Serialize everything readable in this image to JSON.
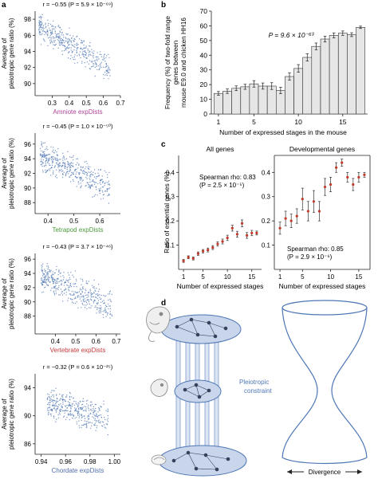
{
  "panel_labels": {
    "a": "a",
    "b": "b",
    "c": "c",
    "d": "d"
  },
  "colors": {
    "scatter_point": "#5b7fb8",
    "amniote": "#b0449b",
    "tetrapod": "#4c9a3c",
    "vertebrate": "#c43c3c",
    "chordate": "#4f6fa8",
    "bar_fill": "#e6e6e6",
    "error_point": "#c0392b",
    "embryo_blue": "#c9d5ea",
    "outline_blue": "#4e77b5",
    "constraint_text": "#4e77b5"
  },
  "chart_data": [
    {
      "id": "a1",
      "type": "scatter",
      "stat": "r = −0.55 (P = 5.9 × 10⁻⁶⁹)",
      "xlabel": "Amniote expDists",
      "ylabel_1": "Average of",
      "ylabel_2": "pleiotropic gene ratio (%)",
      "xlim": [
        0.2,
        0.7
      ],
      "ylim": [
        88.5,
        99
      ],
      "xticks": [
        "0.3",
        "0.4",
        "0.5",
        "0.6",
        "0.7"
      ],
      "xtick_values": [
        0.3,
        0.4,
        0.5,
        0.6,
        0.7
      ],
      "yticks": [
        "90",
        "92",
        "94",
        "96",
        "98"
      ],
      "ytick_values": [
        90,
        92,
        94,
        96,
        98
      ],
      "cloud": {
        "x_from": 0.22,
        "x_to": 0.64,
        "y_start": 97.2,
        "y_end": 91.8,
        "spread": 1.6,
        "n": 420,
        "seed": 11
      }
    },
    {
      "id": "a2",
      "type": "scatter",
      "stat": "r = −0.45 (P = 1.0 × 10⁻⁵⁰)",
      "xlabel": "Tetrapod expDists",
      "ylabel_1": "Average of",
      "ylabel_2": "pleiotropic gene ratio (%)",
      "xlim": [
        0.35,
        0.68
      ],
      "ylim": [
        86.5,
        97.5
      ],
      "xticks": [
        "0.4",
        "0.5",
        "0.6"
      ],
      "xtick_values": [
        0.4,
        0.5,
        0.6
      ],
      "yticks": [
        "88",
        "90",
        "92",
        "94",
        "96"
      ],
      "ytick_values": [
        88,
        90,
        92,
        94,
        96
      ],
      "cloud": {
        "x_from": 0.37,
        "x_to": 0.64,
        "y_start": 94.5,
        "y_end": 90.0,
        "spread": 1.9,
        "n": 440,
        "seed": 23
      }
    },
    {
      "id": "a3",
      "type": "scatter",
      "stat": "r = −0.43 (P = 3.7 × 10⁻⁴⁶)",
      "xlabel": "Vertebrate expDists",
      "ylabel_1": "Average of",
      "ylabel_2": "pleiotropic gene ratio (%)",
      "xlim": [
        0.3,
        0.72
      ],
      "ylim": [
        85.5,
        96.8
      ],
      "xticks": [
        "0.4",
        "0.5",
        "0.6",
        "0.7"
      ],
      "xtick_values": [
        0.4,
        0.5,
        0.6,
        0.7
      ],
      "yticks": [
        "88",
        "90",
        "92",
        "94",
        "96"
      ],
      "ytick_values": [
        88,
        90,
        92,
        94,
        96
      ],
      "cloud": {
        "x_from": 0.33,
        "x_to": 0.68,
        "y_start": 93.6,
        "y_end": 89.4,
        "spread": 2.0,
        "n": 430,
        "seed": 37
      }
    },
    {
      "id": "a4",
      "type": "scatter",
      "stat": "r = −0.32 (P = 0.6 × 10⁻²⁵)",
      "xlabel": "Chordate expDists",
      "ylabel_1": "Average of",
      "ylabel_2": "pleiotropic gene ratio (%)",
      "xlim": [
        0.935,
        1.005
      ],
      "ylim": [
        84.5,
        96
      ],
      "xticks": [
        "0.94",
        "0.96",
        "0.98",
        "1.00"
      ],
      "xtick_values": [
        0.94,
        0.96,
        0.98,
        1.0
      ],
      "yticks": [
        "86",
        "90",
        "94"
      ],
      "ytick_values": [
        86,
        90,
        94
      ],
      "cloud": {
        "x_from": 0.945,
        "x_to": 0.995,
        "y_start": 92.0,
        "y_end": 89.5,
        "spread": 2.1,
        "n": 380,
        "seed": 53
      }
    },
    {
      "id": "b",
      "type": "bar",
      "stat": "P = 9.6 × 10⁻⁶³",
      "xlabel": "Number of expressed stages in the mouse",
      "ylabel_1": "Frequency (%) of two-fold range",
      "ylabel_2": "genes between",
      "ylabel_3": "mouse E9.0 and chicken HH16",
      "categories": [
        1,
        2,
        3,
        4,
        5,
        6,
        7,
        8,
        9,
        10,
        11,
        12,
        13,
        14,
        15,
        16,
        17
      ],
      "values": [
        14,
        15.5,
        17.5,
        18.5,
        20.5,
        19,
        19,
        16,
        25.5,
        31,
        38.5,
        46,
        51,
        53.5,
        55,
        54,
        59
      ],
      "errors": [
        1.3,
        1.5,
        1.6,
        1.7,
        2.2,
        2.1,
        2.3,
        2.2,
        2.4,
        2.6,
        2.5,
        2.3,
        2.0,
        1.7,
        1.5,
        1.3,
        0.8
      ],
      "ylim": [
        0,
        70
      ],
      "xticks": [
        "1",
        "5",
        "10",
        "15"
      ],
      "xtick_values": [
        1,
        5,
        10,
        15
      ],
      "yticks": [
        "0",
        "10",
        "20",
        "30",
        "40",
        "50",
        "60",
        "70"
      ],
      "ytick_values": [
        0,
        10,
        20,
        30,
        40,
        50,
        60,
        70
      ]
    },
    {
      "id": "c1",
      "type": "scatter",
      "title": "All genes",
      "stat_1": "Spearman rho: 0.83",
      "stat_2": "(P = 2.5 × 10⁻⁵)",
      "xlabel": "Number of expressed stages",
      "ylabel": "Ratio of essential genes (%)",
      "xlim": [
        0,
        17
      ],
      "ylim": [
        0,
        0.47
      ],
      "xticks": [
        "1",
        "5",
        "10",
        "15"
      ],
      "xtick_values": [
        1,
        5,
        10,
        15
      ],
      "yticks": [
        "0.1",
        "0.2",
        "0.3",
        "0.4"
      ],
      "ytick_values": [
        0.1,
        0.2,
        0.3,
        0.4
      ],
      "x": [
        1,
        2,
        3,
        4,
        5,
        6,
        7,
        8,
        9,
        10,
        11,
        12,
        13,
        14,
        15,
        16
      ],
      "values": [
        0.035,
        0.05,
        0.045,
        0.065,
        0.075,
        0.08,
        0.09,
        0.105,
        0.115,
        0.13,
        0.17,
        0.145,
        0.19,
        0.14,
        0.15,
        0.15
      ],
      "errors": [
        0.006,
        0.006,
        0.006,
        0.007,
        0.007,
        0.008,
        0.008,
        0.009,
        0.01,
        0.011,
        0.012,
        0.012,
        0.014,
        0.012,
        0.011,
        0.008
      ]
    },
    {
      "id": "c2",
      "type": "scatter",
      "title": "Developmental genes",
      "stat_1": "Spearman rho: 0.85",
      "stat_2": "(P = 2.9 × 10⁻⁶)",
      "xlabel": "Number of expressed stages",
      "xlim": [
        0,
        17
      ],
      "ylim": [
        0,
        0.47
      ],
      "xticks": [
        "1",
        "5",
        "10",
        "15"
      ],
      "xtick_values": [
        1,
        5,
        10,
        15
      ],
      "yticks": [
        "0.1",
        "0.2",
        "0.3",
        "0.4"
      ],
      "ytick_values": [
        0.1,
        0.2,
        0.3,
        0.4
      ],
      "x": [
        1,
        2,
        3,
        4,
        5,
        6,
        7,
        8,
        9,
        10,
        11,
        12,
        13,
        14,
        15,
        16
      ],
      "values": [
        0.17,
        0.21,
        0.2,
        0.22,
        0.29,
        0.24,
        0.28,
        0.24,
        0.34,
        0.35,
        0.42,
        0.44,
        0.38,
        0.35,
        0.38,
        0.39
      ],
      "errors": [
        0.025,
        0.03,
        0.028,
        0.03,
        0.045,
        0.04,
        0.045,
        0.04,
        0.035,
        0.03,
        0.02,
        0.015,
        0.02,
        0.025,
        0.02,
        0.01
      ]
    }
  ],
  "diagram": {
    "constraint_label_1": "Pleiotropic",
    "constraint_label_2": "constraint",
    "divergence_label": "Divergence"
  }
}
